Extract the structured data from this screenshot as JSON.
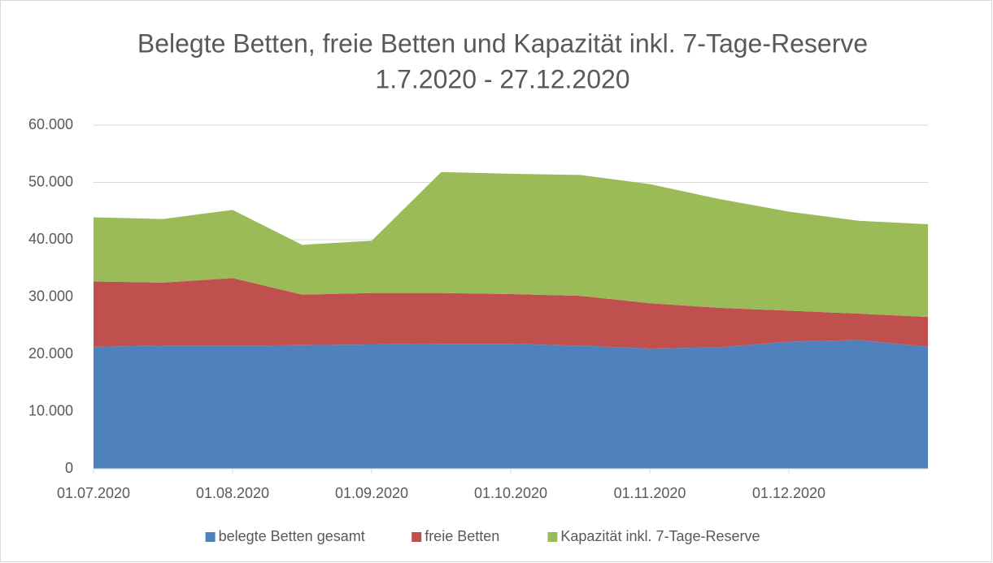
{
  "chart_data": {
    "type": "stacked_area",
    "title": "Belegte Betten, freie Betten und Kapazität inkl. 7-Tage-Reserve",
    "subtitle": "1.7.2020 - 27.12.2020",
    "categories": [
      "01.07.2020",
      null,
      "01.08.2020",
      null,
      "01.09.2020",
      null,
      "01.10.2020",
      null,
      "01.11.2020",
      null,
      "01.12.2020",
      null,
      null
    ],
    "series": [
      {
        "name": "belegte Betten gesamt",
        "color": "#4f81bd",
        "values": [
          21300,
          21500,
          21500,
          21600,
          21700,
          21800,
          21800,
          21500,
          21000,
          21200,
          22200,
          22500,
          21300
        ]
      },
      {
        "name": "freie Betten",
        "color": "#c0504d",
        "values": [
          11400,
          11000,
          11800,
          8800,
          9000,
          8900,
          8700,
          8700,
          7900,
          6900,
          5400,
          4600,
          5200
        ]
      },
      {
        "name": "Kapazität inkl. 7-Tage-Reserve",
        "color": "#9bbb59",
        "values": [
          11200,
          11100,
          11900,
          8700,
          9100,
          21100,
          21000,
          21100,
          20800,
          19000,
          17300,
          16200,
          16200
        ]
      }
    ],
    "ylim": [
      0,
      60000
    ],
    "yticks": [
      0,
      {
        "value": 10000,
        "label": "10.000"
      },
      {
        "value": 20000,
        "label": "20.000"
      },
      {
        "value": 30000,
        "label": "30.000"
      },
      {
        "value": 40000,
        "label": "40.000"
      },
      {
        "value": 50000,
        "label": "50.000"
      },
      {
        "value": 60000,
        "label": "60.000"
      }
    ],
    "grid": true,
    "legend": "bottom"
  }
}
